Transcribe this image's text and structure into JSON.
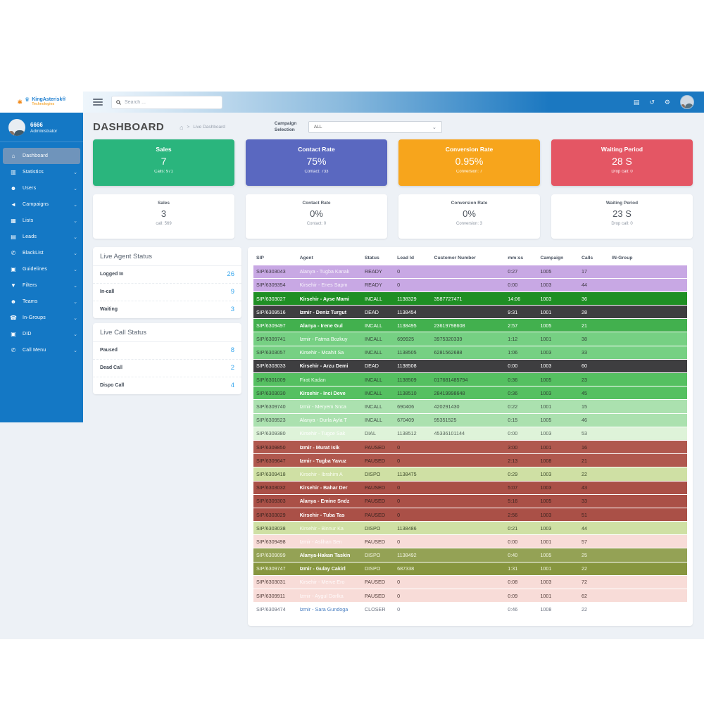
{
  "brand": {
    "line1": "KingAsterisk®",
    "line2": "Technologies",
    "crown_icon": "crown",
    "asterisk_icon": "asterisk"
  },
  "topbar": {
    "search_placeholder": "Search ...",
    "icons": [
      {
        "name": "contacts-icon",
        "glyph": "▤"
      },
      {
        "name": "history-icon",
        "glyph": "↺"
      },
      {
        "name": "settings-icon",
        "glyph": "⚙"
      }
    ]
  },
  "user": {
    "ext": "6666",
    "role": "Administrator"
  },
  "sidebar": {
    "items": [
      {
        "label": "Dashboard",
        "icon": "home-icon",
        "glyph": "⌂",
        "active": true,
        "expandable": false
      },
      {
        "label": "Statistics",
        "icon": "bar-chart-icon",
        "glyph": "▥",
        "active": false,
        "expandable": true
      },
      {
        "label": "Users",
        "icon": "user-icon",
        "glyph": "☻",
        "active": false,
        "expandable": true
      },
      {
        "label": "Campaigns",
        "icon": "megaphone-icon",
        "glyph": "◄",
        "active": false,
        "expandable": true
      },
      {
        "label": "Lists",
        "icon": "table-icon",
        "glyph": "▦",
        "active": false,
        "expandable": true
      },
      {
        "label": "Leads",
        "icon": "file-icon",
        "glyph": "▤",
        "active": false,
        "expandable": true
      },
      {
        "label": "BlackList",
        "icon": "phone-slash-icon",
        "glyph": "✆",
        "active": false,
        "expandable": true
      },
      {
        "label": "Guidelines",
        "icon": "newspaper-icon",
        "glyph": "▣",
        "active": false,
        "expandable": true
      },
      {
        "label": "Filters",
        "icon": "filter-icon",
        "glyph": "▼",
        "active": false,
        "expandable": true
      },
      {
        "label": "Teams",
        "icon": "users-icon",
        "glyph": "☻",
        "active": false,
        "expandable": true
      },
      {
        "label": "In-Groups",
        "icon": "phone-icon",
        "glyph": "☎",
        "active": false,
        "expandable": true
      },
      {
        "label": "DID",
        "icon": "square-check-icon",
        "glyph": "▣",
        "active": false,
        "expandable": true
      },
      {
        "label": "Call Menu",
        "icon": "phone-volume-icon",
        "glyph": "✆",
        "active": false,
        "expandable": true
      }
    ]
  },
  "page": {
    "title": "DASHBOARD",
    "breadcrumb_sep": ">",
    "breadcrumb_current": "Live Dashboard"
  },
  "campaign": {
    "label": "Campaign Selection",
    "value": "ALL"
  },
  "kpi_cards": [
    {
      "title": "Sales",
      "value": "7",
      "sub": "Calls: 971",
      "color": "#2ab57d"
    },
    {
      "title": "Contact Rate",
      "value": "75%",
      "sub": "Contact: 733",
      "color": "#5a68c0"
    },
    {
      "title": "Conversion Rate",
      "value": "0.95%",
      "sub": "Conversion: 7",
      "color": "#f7a51c"
    },
    {
      "title": "Waiting Period",
      "value": "28 S",
      "sub": "Drop call: 0",
      "color": "#e45664"
    }
  ],
  "summary_cards": [
    {
      "title": "Sales",
      "value": "3",
      "sub": "call: 569"
    },
    {
      "title": "Contact Rate",
      "value": "0%",
      "sub": "Contact: 0"
    },
    {
      "title": "Conversion Rate",
      "value": "0%",
      "sub": "Conversion: 3"
    },
    {
      "title": "Waiting Period",
      "value": "23 S",
      "sub": "Drop call: 0"
    }
  ],
  "agent_status": {
    "title": "Live Agent Status",
    "rows": [
      {
        "label": "Logged In",
        "value": "26"
      },
      {
        "label": "In-call",
        "value": "9"
      },
      {
        "label": "Waiting",
        "value": "3"
      }
    ]
  },
  "call_status": {
    "title": "Live Call Status",
    "rows": [
      {
        "label": "Paused",
        "value": "8"
      },
      {
        "label": "Dead Call",
        "value": "2"
      },
      {
        "label": "Dispo Call",
        "value": "4"
      }
    ]
  },
  "table": {
    "headers": [
      "SIP",
      "Agent",
      "Status",
      "Lead Id",
      "Customer Number",
      "mm:ss",
      "Campaign",
      "Calls",
      "IN-Group"
    ],
    "rows": [
      {
        "sip": "SIP/6303043",
        "agent": "Alanya - Tugba Kanak",
        "status": "READY",
        "lead": "0",
        "customer": "",
        "mmss": "0:27",
        "campaign": "1005",
        "calls": "17",
        "ingroup": "",
        "bg": "#c8a8e4",
        "c": "#403a46",
        "ac": "#f6f1fb",
        "b": false
      },
      {
        "sip": "SIP/6309354",
        "agent": "Kirsehir - Enes Sapm",
        "status": "READY",
        "lead": "0",
        "customer": "",
        "mmss": "0:00",
        "campaign": "1003",
        "calls": "44",
        "ingroup": "",
        "bg": "#c8a8e4",
        "c": "#403a46",
        "ac": "#f6f1fb",
        "b": false
      },
      {
        "sip": "SIP/6303027",
        "agent": "Kirsehir - Ayse Mami",
        "status": "INCALL",
        "lead": "1138329",
        "customer": "3587727471",
        "mmss": "14:06",
        "campaign": "1003",
        "calls": "36",
        "ingroup": "",
        "bg": "#1f8f24",
        "c": "#ffffff",
        "ac": "#ffffff",
        "b": true
      },
      {
        "sip": "SIP/6309516",
        "agent": "Izmir - Deniz Turgut",
        "status": "DEAD",
        "lead": "1138454",
        "customer": "",
        "mmss": "9:31",
        "campaign": "1001",
        "calls": "28",
        "ingroup": "",
        "bg": "#3e3e40",
        "c": "#ffffff",
        "ac": "#ffffff",
        "b": true
      },
      {
        "sip": "SIP/6309497",
        "agent": "Alanya - Irene Gul",
        "status": "INCALL",
        "lead": "1138495",
        "customer": "23619798608",
        "mmss": "2:57",
        "campaign": "1005",
        "calls": "21",
        "ingroup": "",
        "bg": "#42b04e",
        "c": "#ffffff",
        "ac": "#ffffff",
        "b": true
      },
      {
        "sip": "SIP/6309741",
        "agent": "Izmir - Fatma Bozkuy",
        "status": "INCALL",
        "lead": "699925",
        "customer": "3975320339",
        "mmss": "1:12",
        "campaign": "1001",
        "calls": "38",
        "ingroup": "",
        "bg": "#76d083",
        "c": "#35473a",
        "ac": "#ffffff",
        "b": false
      },
      {
        "sip": "SIP/6303057",
        "agent": "Kirsehir - Mcahit Sa",
        "status": "INCALL",
        "lead": "1138505",
        "customer": "6281562688",
        "mmss": "1:06",
        "campaign": "1003",
        "calls": "33",
        "ingroup": "",
        "bg": "#76d083",
        "c": "#35473a",
        "ac": "#ffffff",
        "b": false
      },
      {
        "sip": "SIP/6303033",
        "agent": "Kirsehir - Arzu Demi",
        "status": "DEAD",
        "lead": "1138508",
        "customer": "",
        "mmss": "0:00",
        "campaign": "1003",
        "calls": "60",
        "ingroup": "",
        "bg": "#3e3e40",
        "c": "#ffffff",
        "ac": "#ffffff",
        "b": true
      },
      {
        "sip": "SIP/6301009",
        "agent": "Firat Kadan",
        "status": "INCALL",
        "lead": "1138509",
        "customer": "017681485794",
        "mmss": "0:36",
        "campaign": "1005",
        "calls": "23",
        "ingroup": "",
        "bg": "#55c061",
        "c": "#2f4433",
        "ac": "#eafbea",
        "b": false
      },
      {
        "sip": "SIP/6303030",
        "agent": "Kirsehir - Inci Deve",
        "status": "INCALL",
        "lead": "1138510",
        "customer": "28419998648",
        "mmss": "0:36",
        "campaign": "1003",
        "calls": "45",
        "ingroup": "",
        "bg": "#55c061",
        "c": "#2f4433",
        "ac": "#ffffff",
        "b": true
      },
      {
        "sip": "SIP/6309740",
        "agent": "Izmir - Meryem Snca",
        "status": "INCALL",
        "lead": "690406",
        "customer": "420291430",
        "mmss": "0:22",
        "campaign": "1001",
        "calls": "15",
        "ingroup": "",
        "bg": "#abe1af",
        "c": "#44544a",
        "ac": "#fbfffb",
        "b": false
      },
      {
        "sip": "SIP/6309523",
        "agent": "Alanya - Durla Ayla T",
        "status": "INCALL",
        "lead": "670409",
        "customer": "95351525",
        "mmss": "0:15",
        "campaign": "1005",
        "calls": "46",
        "ingroup": "",
        "bg": "#abe1af",
        "c": "#44544a",
        "ac": "#ffffff",
        "b": false
      },
      {
        "sip": "SIP/6309380",
        "agent": "Kirsehir - Tugce Sak",
        "status": "DIAL",
        "lead": "1138512",
        "customer": "45336101144",
        "mmss": "0:00",
        "campaign": "1003",
        "calls": "53",
        "ingroup": "",
        "bg": "#def3d9",
        "c": "#55645a",
        "ac": "#ffffff",
        "b": false
      },
      {
        "sip": "SIP/6309850",
        "agent": "Izmir - Murat Isik",
        "status": "PAUSED",
        "lead": "0",
        "customer": "",
        "mmss": "3:00",
        "campaign": "1001",
        "calls": "16",
        "ingroup": "",
        "bg": "#b0584e",
        "c": "#3c2420",
        "ac": "#ffffff",
        "b": true
      },
      {
        "sip": "SIP/6309647",
        "agent": "Izmir - Tugba Yavuz",
        "status": "PAUSED",
        "lead": "0",
        "customer": "",
        "mmss": "2:13",
        "campaign": "1008",
        "calls": "21",
        "ingroup": "",
        "bg": "#b0584e",
        "c": "#3c2420",
        "ac": "#ffffff",
        "b": true
      },
      {
        "sip": "SIP/6309418",
        "agent": "Kirsehir - Ibrahim A",
        "status": "DISPO",
        "lead": "1138475",
        "customer": "",
        "mmss": "0:29",
        "campaign": "1003",
        "calls": "22",
        "ingroup": "",
        "bg": "#cfe0a4",
        "c": "#3e4c2c",
        "ac": "#f8fdef",
        "b": false
      },
      {
        "sip": "SIP/6303032",
        "agent": "Kirsehir - Bahar Der",
        "status": "PAUSED",
        "lead": "0",
        "customer": "",
        "mmss": "5:07",
        "campaign": "1003",
        "calls": "43",
        "ingroup": "",
        "bg": "#aa5047",
        "c": "#3c2420",
        "ac": "#ffffff",
        "b": true
      },
      {
        "sip": "SIP/6309303",
        "agent": "Alanya - Emine Sndz",
        "status": "PAUSED",
        "lead": "0",
        "customer": "",
        "mmss": "5:16",
        "campaign": "1005",
        "calls": "33",
        "ingroup": "",
        "bg": "#aa5047",
        "c": "#3c2420",
        "ac": "#ffffff",
        "b": true
      },
      {
        "sip": "SIP/6303029",
        "agent": "Kirsehir - Tuba Tas",
        "status": "PAUSED",
        "lead": "0",
        "customer": "",
        "mmss": "2:56",
        "campaign": "1003",
        "calls": "51",
        "ingroup": "",
        "bg": "#aa5047",
        "c": "#3c2420",
        "ac": "#ffffff",
        "b": true
      },
      {
        "sip": "SIP/6303038",
        "agent": "Kirsehir - Binnur Ka",
        "status": "DISPO",
        "lead": "1138486",
        "customer": "",
        "mmss": "0:21",
        "campaign": "1003",
        "calls": "44",
        "ingroup": "",
        "bg": "#cfe0a4",
        "c": "#3e4c2c",
        "ac": "#f8fdef",
        "b": false
      },
      {
        "sip": "SIP/6309498",
        "agent": "Izmir - Aslihan Sen",
        "status": "PAUSED",
        "lead": "0",
        "customer": "",
        "mmss": "0:00",
        "campaign": "1001",
        "calls": "57",
        "ingroup": "",
        "bg": "#f8dcd8",
        "c": "#55403c",
        "ac": "#fffafa",
        "b": false
      },
      {
        "sip": "SIP/6309099",
        "agent": "Alanya-Hakan Taskin",
        "status": "DISPO",
        "lead": "1138492",
        "customer": "",
        "mmss": "0:40",
        "campaign": "1005",
        "calls": "25",
        "ingroup": "",
        "bg": "#94a255",
        "c": "#f2f5e2",
        "ac": "#ffffff",
        "b": true
      },
      {
        "sip": "SIP/6309747",
        "agent": "Izmir - Gulay Cakirl",
        "status": "DISPO",
        "lead": "687338",
        "customer": "",
        "mmss": "1:31",
        "campaign": "1001",
        "calls": "22",
        "ingroup": "",
        "bg": "#87963f",
        "c": "#f2f5e2",
        "ac": "#ffffff",
        "b": true
      },
      {
        "sip": "SIP/6303031",
        "agent": "Kirsehir - Merve Ero",
        "status": "PAUSED",
        "lead": "0",
        "customer": "",
        "mmss": "0:08",
        "campaign": "1003",
        "calls": "72",
        "ingroup": "",
        "bg": "#f8dcd8",
        "c": "#55403c",
        "ac": "#fffafa",
        "b": false
      },
      {
        "sip": "SIP/6309911",
        "agent": "Izmir - Aygul Dorlka",
        "status": "PAUSED",
        "lead": "0",
        "customer": "",
        "mmss": "0:09",
        "campaign": "1001",
        "calls": "62",
        "ingroup": "",
        "bg": "#f8dcd8",
        "c": "#55403c",
        "ac": "#fffafa",
        "b": false
      },
      {
        "sip": "SIP/6309474",
        "agent": "Izmir - Sara Gundoga",
        "status": "CLOSER",
        "lead": "0",
        "customer": "",
        "mmss": "0:46",
        "campaign": "1008",
        "calls": "22",
        "ingroup": "",
        "bg": "#ffffff",
        "c": "#6b7280",
        "ac": "#4a7fc1",
        "b": false
      }
    ]
  }
}
